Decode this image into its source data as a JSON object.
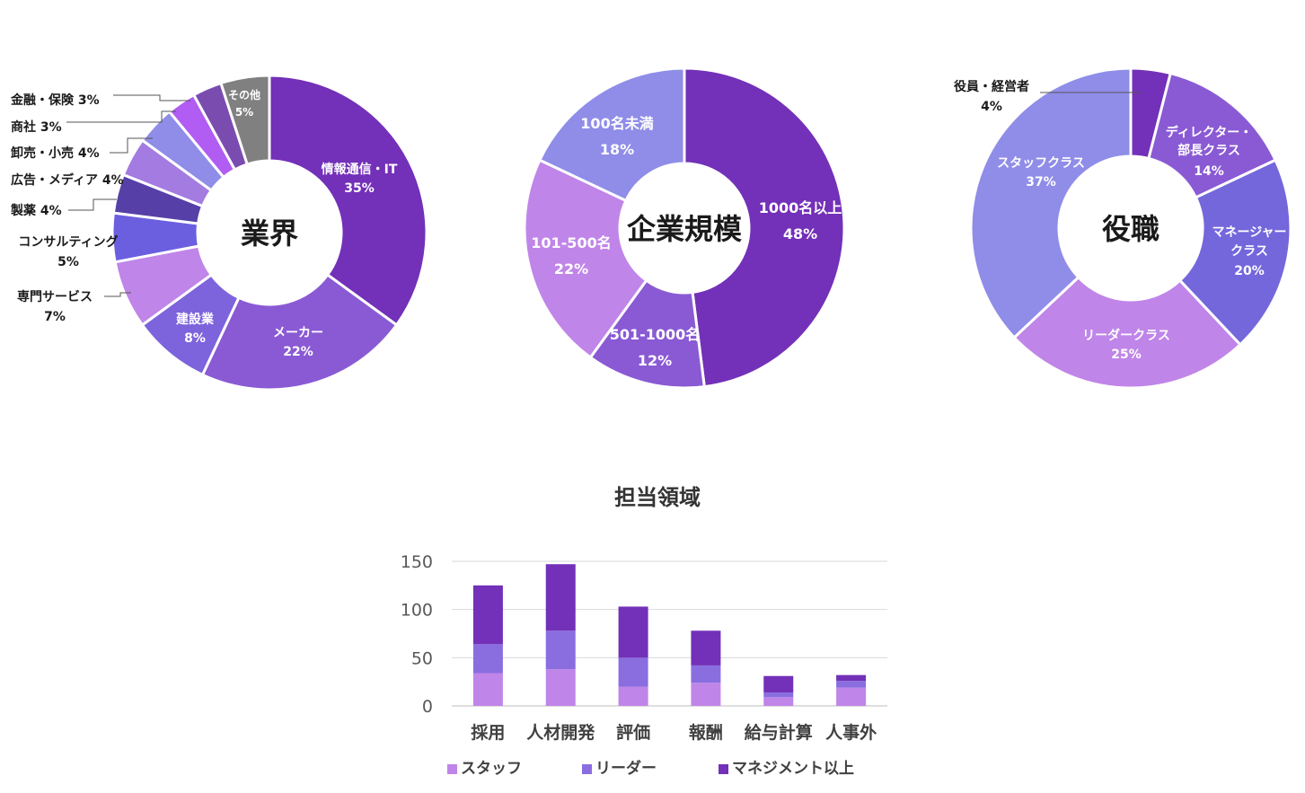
{
  "chart_data": [
    {
      "type": "pie",
      "title": "業界",
      "slices": [
        {
          "label": "情報通信・IT",
          "value": 35,
          "text": "35%",
          "color": "#7330b8"
        },
        {
          "label": "メーカー",
          "value": 22,
          "text": "22%",
          "color": "#8a5ad4"
        },
        {
          "label": "建設業",
          "value": 8,
          "text": "8%",
          "color": "#7d63dc"
        },
        {
          "label": "専門サービス",
          "value": 7,
          "text": "7%",
          "color": "#c085e8"
        },
        {
          "label": "コンサルティング",
          "value": 5,
          "text": "5%",
          "color": "#6b5fe0"
        },
        {
          "label": "製薬",
          "value": 4,
          "text": "4%",
          "color": "#5640a8"
        },
        {
          "label": "広告・メディア",
          "value": 4,
          "text": "4%",
          "color": "#a47be0"
        },
        {
          "label": "卸売・小売",
          "value": 4,
          "text": "4%",
          "color": "#8f8de8"
        },
        {
          "label": "商社",
          "value": 3,
          "text": "3%",
          "color": "#b15cf2"
        },
        {
          "label": "金融・保険",
          "value": 3,
          "text": "3%",
          "color": "#7a4cb0"
        },
        {
          "label": "その他",
          "value": 5,
          "text": "5%",
          "color": "#808080"
        }
      ],
      "callouts": {
        "金融・保険": "金融・保険 3%",
        "商社": "商社 3%",
        "卸売・小売": "卸売・小売  4%",
        "広告・メディア": "広告・メディア 4%",
        "製薬": "製薬 4%"
      }
    },
    {
      "type": "pie",
      "title": "企業規模",
      "slices": [
        {
          "label": "1000名以上",
          "value": 48,
          "text": "48%",
          "color": "#7330b8"
        },
        {
          "label": "501-1000名",
          "value": 12,
          "text": "12%",
          "color": "#8a5ad4"
        },
        {
          "label": "101-500名",
          "value": 22,
          "text": "22%",
          "color": "#c085e8"
        },
        {
          "label": "100名未満",
          "value": 18,
          "text": "18%",
          "color": "#8f8de8"
        }
      ]
    },
    {
      "type": "pie",
      "title": "役職",
      "slices": [
        {
          "label": "役員・経営者",
          "value": 4,
          "text": "4%",
          "color": "#7330b8"
        },
        {
          "label": "ディレクター・部長クラス",
          "value": 14,
          "text": "14%",
          "color": "#8a5ad4"
        },
        {
          "label": "マネージャークラス",
          "value": 20,
          "text": "20%",
          "color": "#7467dc"
        },
        {
          "label": "リーダークラス",
          "value": 25,
          "text": "25%",
          "color": "#c085e8"
        },
        {
          "label": "スタッフクラス",
          "value": 37,
          "text": "37%",
          "color": "#8f8de8"
        }
      ]
    },
    {
      "type": "bar",
      "stacked": true,
      "title": "担当領域",
      "categories": [
        "採用",
        "人材開発",
        "評価",
        "報酬",
        "給与計算",
        "人事外"
      ],
      "series": [
        {
          "name": "スタッフ",
          "values": [
            34,
            38,
            20,
            24,
            9,
            19
          ],
          "color": "#c085e8"
        },
        {
          "name": "リーダー",
          "values": [
            30,
            40,
            30,
            18,
            5,
            7
          ],
          "color": "#8a6ee0"
        },
        {
          "name": "マネジメント以上",
          "values": [
            61,
            69,
            53,
            36,
            17,
            6
          ],
          "color": "#7330b8"
        }
      ],
      "ylim": [
        0,
        150
      ],
      "yticks": [
        0,
        50,
        100,
        150
      ],
      "grid": true,
      "legend": "bottom"
    }
  ]
}
